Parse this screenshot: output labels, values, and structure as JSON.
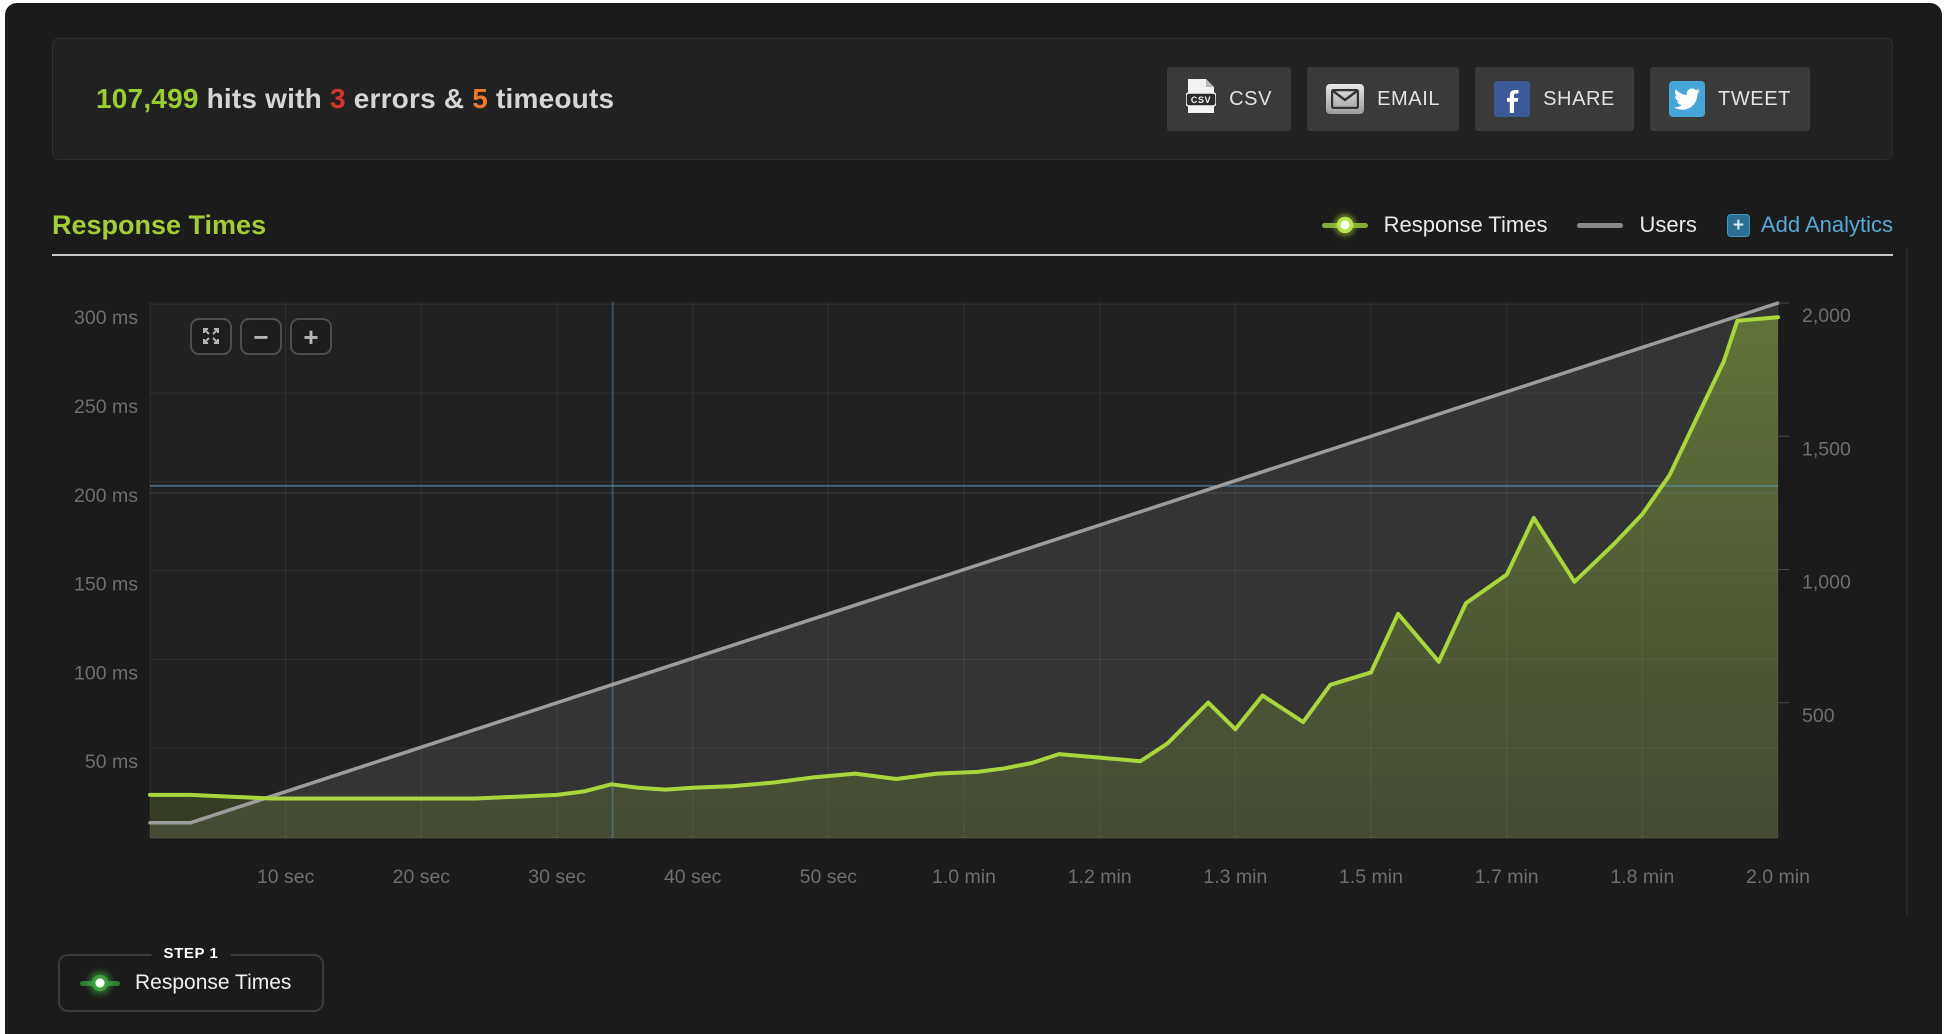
{
  "stats_bar": {
    "hits": "107,499",
    "hits_color": "#9acd32",
    "text_hits": " hits with ",
    "errors": "3",
    "errors_color": "#d4342b",
    "text_errors": " errors & ",
    "timeouts": "5",
    "timeouts_color": "#ed7a28",
    "text_timeouts": " timeouts",
    "buttons": [
      {
        "label": "CSV",
        "icon": "csv-file-icon"
      },
      {
        "label": "EMAIL",
        "icon": "email-icon"
      },
      {
        "label": "SHARE",
        "icon": "facebook-icon"
      },
      {
        "label": "TWEET",
        "icon": "twitter-icon"
      }
    ]
  },
  "section": {
    "title": "Response Times",
    "title_color": "#a3cc39"
  },
  "legend": {
    "items": [
      {
        "label": "Response Times",
        "type": "line-dot",
        "color": "#9acd32"
      },
      {
        "label": "Users",
        "type": "line",
        "color": "#999999"
      }
    ],
    "add_analytics": {
      "label": "Add Analytics",
      "plus_glyph": "+",
      "color": "#57a9d4"
    }
  },
  "zoom_controls": {
    "zoom_out_glyph": "−",
    "zoom_in_glyph": "+"
  },
  "step_panel": {
    "step_label": "STEP 1",
    "title": "Response Times"
  },
  "chart_data": {
    "type": "area",
    "title": "Response Times",
    "x_range": [
      0,
      120
    ],
    "x_unit": "seconds",
    "grid": true,
    "x_ticks": [
      {
        "v": 10,
        "label": "10 sec"
      },
      {
        "v": 20,
        "label": "20 sec"
      },
      {
        "v": 30,
        "label": "30 sec"
      },
      {
        "v": 40,
        "label": "40 sec"
      },
      {
        "v": 50,
        "label": "50 sec"
      },
      {
        "v": 60,
        "label": "1.0 min"
      },
      {
        "v": 70,
        "label": "1.2 min"
      },
      {
        "v": 80,
        "label": "1.3 min"
      },
      {
        "v": 90,
        "label": "1.5 min"
      },
      {
        "v": 100,
        "label": "1.7 min"
      },
      {
        "v": 110,
        "label": "1.8 min"
      },
      {
        "v": 120,
        "label": "2.0 min"
      }
    ],
    "y_left_ticks": [
      {
        "v": 300,
        "label": "300 ms"
      },
      {
        "v": 250,
        "label": "250 ms"
      },
      {
        "v": 200,
        "label": "200 ms"
      },
      {
        "v": 150,
        "label": "150 ms"
      },
      {
        "v": 100,
        "label": "100 ms"
      },
      {
        "v": 50,
        "label": "50 ms"
      }
    ],
    "y_right_ticks": [
      {
        "v": 2000,
        "label": "2,000"
      },
      {
        "v": 1500,
        "label": "1,500"
      },
      {
        "v": 1000,
        "label": "1,000"
      },
      {
        "v": 500,
        "label": "500"
      }
    ],
    "series": [
      {
        "name": "Response Times",
        "axis": "left",
        "color": "#a8d63c",
        "points": [
          [
            0,
            31
          ],
          [
            3,
            31
          ],
          [
            6,
            30
          ],
          [
            9,
            29
          ],
          [
            12,
            29
          ],
          [
            15,
            29
          ],
          [
            18,
            29
          ],
          [
            21,
            29
          ],
          [
            24,
            29
          ],
          [
            27,
            30
          ],
          [
            30,
            31
          ],
          [
            32,
            33
          ],
          [
            34,
            37
          ],
          [
            36,
            35
          ],
          [
            38,
            34
          ],
          [
            40,
            35
          ],
          [
            43,
            36
          ],
          [
            46,
            38
          ],
          [
            49,
            41
          ],
          [
            52,
            43
          ],
          [
            55,
            40
          ],
          [
            58,
            43
          ],
          [
            61,
            44
          ],
          [
            63,
            46
          ],
          [
            65,
            49
          ],
          [
            67,
            54
          ],
          [
            70,
            52
          ],
          [
            73,
            50
          ],
          [
            75,
            60
          ],
          [
            78,
            83
          ],
          [
            80,
            68
          ],
          [
            82,
            87
          ],
          [
            85,
            72
          ],
          [
            87,
            93
          ],
          [
            90,
            100
          ],
          [
            92,
            133
          ],
          [
            95,
            106
          ],
          [
            97,
            139
          ],
          [
            100,
            155
          ],
          [
            102,
            187
          ],
          [
            105,
            151
          ],
          [
            108,
            173
          ],
          [
            110,
            189
          ],
          [
            112,
            211
          ],
          [
            114,
            243
          ],
          [
            116,
            275
          ],
          [
            117,
            298
          ],
          [
            120,
            300
          ]
        ]
      },
      {
        "name": "Users",
        "axis": "right",
        "color": "#9d9d9d",
        "points": [
          [
            0,
            95
          ],
          [
            3,
            95
          ],
          [
            120,
            2045
          ]
        ]
      }
    ],
    "annotations": {
      "vertical_line_t": 34.1,
      "horizontal_lines_ms": [
        205,
        201
      ]
    }
  }
}
